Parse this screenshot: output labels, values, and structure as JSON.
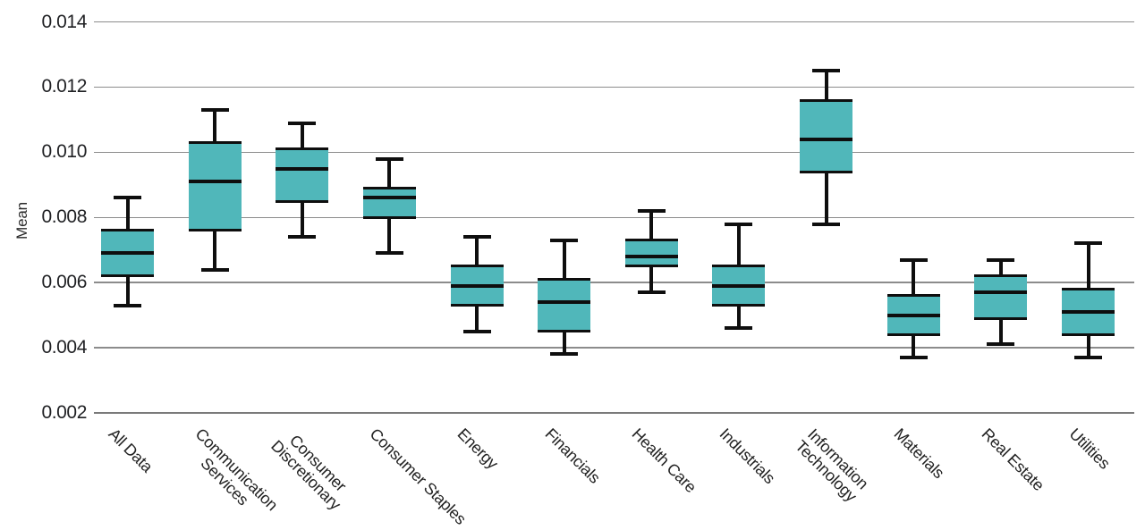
{
  "chart_data": {
    "type": "boxplot",
    "title": "",
    "xlabel": "",
    "ylabel": "Mean",
    "ylim": [
      0.002,
      0.014
    ],
    "ytick_labels": [
      "0.002",
      "0.004",
      "0.006",
      "0.008",
      "0.010",
      "0.012",
      "0.014"
    ],
    "grid": "horizontal-gridlines-on",
    "legend": "none",
    "box_fill_color": "#50b7ba",
    "line_color": "#0e0e0e",
    "gridline_color": "#8c8c8c",
    "boxes": [
      {
        "category": "All Data",
        "label": "All Data",
        "whisker_low": 0.0053,
        "q1": 0.0062,
        "median": 0.0069,
        "q3": 0.0076,
        "whisker_high": 0.0086
      },
      {
        "category": "Communication Services",
        "label": "Communication\nServices",
        "whisker_low": 0.0064,
        "q1": 0.0076,
        "median": 0.0091,
        "q3": 0.0103,
        "whisker_high": 0.0113
      },
      {
        "category": "Consumer Discretionary",
        "label": "Consumer\nDiscretionary",
        "whisker_low": 0.0074,
        "q1": 0.0085,
        "median": 0.0095,
        "q3": 0.0101,
        "whisker_high": 0.0109
      },
      {
        "category": "Consumer Staples",
        "label": "Consumer Staples",
        "whisker_low": 0.0069,
        "q1": 0.008,
        "median": 0.0086,
        "q3": 0.0089,
        "whisker_high": 0.0098
      },
      {
        "category": "Energy",
        "label": "Energy",
        "whisker_low": 0.0045,
        "q1": 0.0053,
        "median": 0.0059,
        "q3": 0.0065,
        "whisker_high": 0.0074
      },
      {
        "category": "Financials",
        "label": "Financials",
        "whisker_low": 0.0038,
        "q1": 0.0045,
        "median": 0.0054,
        "q3": 0.0061,
        "whisker_high": 0.0073
      },
      {
        "category": "Health Care",
        "label": "Health Care",
        "whisker_low": 0.0057,
        "q1": 0.0065,
        "median": 0.0068,
        "q3": 0.0073,
        "whisker_high": 0.0082
      },
      {
        "category": "Industrials",
        "label": "Industrials",
        "whisker_low": 0.0046,
        "q1": 0.0053,
        "median": 0.0059,
        "q3": 0.0065,
        "whisker_high": 0.0078
      },
      {
        "category": "Information Technology",
        "label": "Information\nTechnology",
        "whisker_low": 0.0078,
        "q1": 0.0094,
        "median": 0.0104,
        "q3": 0.0116,
        "whisker_high": 0.0125
      },
      {
        "category": "Materials",
        "label": "Materials",
        "whisker_low": 0.0037,
        "q1": 0.0044,
        "median": 0.005,
        "q3": 0.0056,
        "whisker_high": 0.0067
      },
      {
        "category": "Real Estate",
        "label": "Real Estate",
        "whisker_low": 0.0041,
        "q1": 0.0049,
        "median": 0.0057,
        "q3": 0.0062,
        "whisker_high": 0.0067
      },
      {
        "category": "Utilities",
        "label": "Utilities",
        "whisker_low": 0.0037,
        "q1": 0.0044,
        "median": 0.0051,
        "q3": 0.0058,
        "whisker_high": 0.0072
      }
    ]
  }
}
